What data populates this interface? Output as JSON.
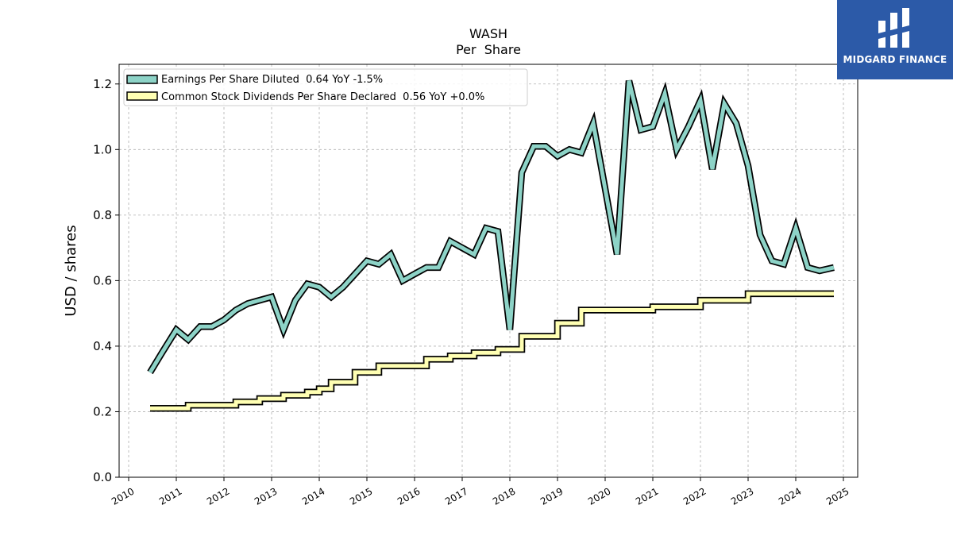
{
  "chart_data": {
    "type": "line",
    "title": "WASH",
    "subtitle": "Per  Share",
    "ylabel": "USD / shares",
    "xlabel": "",
    "xlim": [
      2009.8,
      2025.3
    ],
    "ylim": [
      0.0,
      1.26
    ],
    "x_ticks": [
      "2010",
      "2011",
      "2012",
      "2013",
      "2014",
      "2015",
      "2016",
      "2017",
      "2018",
      "2019",
      "2020",
      "2021",
      "2022",
      "2023",
      "2024",
      "2025"
    ],
    "y_ticks": [
      "0.0",
      "0.2",
      "0.4",
      "0.6",
      "0.8",
      "1.0",
      "1.2"
    ],
    "grid": true,
    "legend_position": "top-left",
    "series": [
      {
        "name": "Earnings Per Share Diluted  0.64 YoY -1.5%",
        "color": "#8dd3c7",
        "style": "line",
        "points": [
          [
            2010.45,
            0.32
          ],
          [
            2010.7,
            0.38
          ],
          [
            2011.0,
            0.45
          ],
          [
            2011.25,
            0.42
          ],
          [
            2011.5,
            0.46
          ],
          [
            2011.75,
            0.46
          ],
          [
            2012.0,
            0.48
          ],
          [
            2012.25,
            0.51
          ],
          [
            2012.5,
            0.53
          ],
          [
            2012.75,
            0.54
          ],
          [
            2013.0,
            0.55
          ],
          [
            2013.25,
            0.45
          ],
          [
            2013.5,
            0.54
          ],
          [
            2013.75,
            0.59
          ],
          [
            2014.0,
            0.58
          ],
          [
            2014.25,
            0.55
          ],
          [
            2014.5,
            0.58
          ],
          [
            2014.75,
            0.62
          ],
          [
            2015.0,
            0.66
          ],
          [
            2015.25,
            0.65
          ],
          [
            2015.5,
            0.68
          ],
          [
            2015.75,
            0.6
          ],
          [
            2016.0,
            0.62
          ],
          [
            2016.25,
            0.64
          ],
          [
            2016.5,
            0.64
          ],
          [
            2016.75,
            0.72
          ],
          [
            2017.0,
            0.7
          ],
          [
            2017.25,
            0.68
          ],
          [
            2017.5,
            0.76
          ],
          [
            2017.75,
            0.75
          ],
          [
            2018.0,
            0.45
          ],
          [
            2018.25,
            0.93
          ],
          [
            2018.5,
            1.01
          ],
          [
            2018.75,
            1.01
          ],
          [
            2019.0,
            0.98
          ],
          [
            2019.25,
            1.0
          ],
          [
            2019.5,
            0.99
          ],
          [
            2019.75,
            1.08
          ],
          [
            2020.0,
            0.88
          ],
          [
            2020.25,
            0.68
          ],
          [
            2020.5,
            1.21
          ],
          [
            2020.75,
            1.06
          ],
          [
            2021.0,
            1.07
          ],
          [
            2021.25,
            1.17
          ],
          [
            2021.5,
            1.0
          ],
          [
            2021.75,
            1.07
          ],
          [
            2022.0,
            1.15
          ],
          [
            2022.25,
            0.94
          ],
          [
            2022.5,
            1.14
          ],
          [
            2022.75,
            1.08
          ],
          [
            2023.0,
            0.95
          ],
          [
            2023.25,
            0.74
          ],
          [
            2023.5,
            0.66
          ],
          [
            2023.75,
            0.65
          ],
          [
            2024.0,
            0.76
          ],
          [
            2024.25,
            0.64
          ],
          [
            2024.5,
            0.63
          ],
          [
            2024.8,
            0.64
          ]
        ]
      },
      {
        "name": "Common Stock Dividends Per Share Declared  0.56 YoY +0.0%",
        "color": "#ffffb3",
        "style": "step",
        "points": [
          [
            2010.45,
            0.21
          ],
          [
            2011.0,
            0.21
          ],
          [
            2011.25,
            0.22
          ],
          [
            2011.5,
            0.22
          ],
          [
            2011.75,
            0.22
          ],
          [
            2012.0,
            0.22
          ],
          [
            2012.25,
            0.23
          ],
          [
            2012.5,
            0.23
          ],
          [
            2012.75,
            0.24
          ],
          [
            2013.0,
            0.24
          ],
          [
            2013.25,
            0.25
          ],
          [
            2013.5,
            0.25
          ],
          [
            2013.75,
            0.26
          ],
          [
            2014.0,
            0.27
          ],
          [
            2014.25,
            0.29
          ],
          [
            2014.5,
            0.29
          ],
          [
            2014.75,
            0.32
          ],
          [
            2015.0,
            0.32
          ],
          [
            2015.25,
            0.34
          ],
          [
            2015.5,
            0.34
          ],
          [
            2015.75,
            0.34
          ],
          [
            2016.0,
            0.34
          ],
          [
            2016.25,
            0.36
          ],
          [
            2016.5,
            0.36
          ],
          [
            2016.75,
            0.37
          ],
          [
            2017.0,
            0.37
          ],
          [
            2017.25,
            0.38
          ],
          [
            2017.5,
            0.38
          ],
          [
            2017.75,
            0.39
          ],
          [
            2018.0,
            0.39
          ],
          [
            2018.25,
            0.43
          ],
          [
            2018.5,
            0.43
          ],
          [
            2018.75,
            0.43
          ],
          [
            2019.0,
            0.47
          ],
          [
            2019.25,
            0.47
          ],
          [
            2019.5,
            0.51
          ],
          [
            2019.75,
            0.51
          ],
          [
            2020.0,
            0.51
          ],
          [
            2020.25,
            0.51
          ],
          [
            2020.5,
            0.51
          ],
          [
            2020.75,
            0.51
          ],
          [
            2021.0,
            0.52
          ],
          [
            2021.25,
            0.52
          ],
          [
            2021.5,
            0.52
          ],
          [
            2021.75,
            0.52
          ],
          [
            2022.0,
            0.54
          ],
          [
            2022.25,
            0.54
          ],
          [
            2022.5,
            0.54
          ],
          [
            2022.75,
            0.54
          ],
          [
            2023.0,
            0.56
          ],
          [
            2023.25,
            0.56
          ],
          [
            2023.5,
            0.56
          ],
          [
            2023.75,
            0.56
          ],
          [
            2024.0,
            0.56
          ],
          [
            2024.25,
            0.56
          ],
          [
            2024.5,
            0.56
          ],
          [
            2024.8,
            0.56
          ]
        ]
      }
    ]
  },
  "logo": {
    "text": "MIDGARD FINANCE",
    "icon": "midgard-logo-icon",
    "background": "#2c5aa8"
  }
}
